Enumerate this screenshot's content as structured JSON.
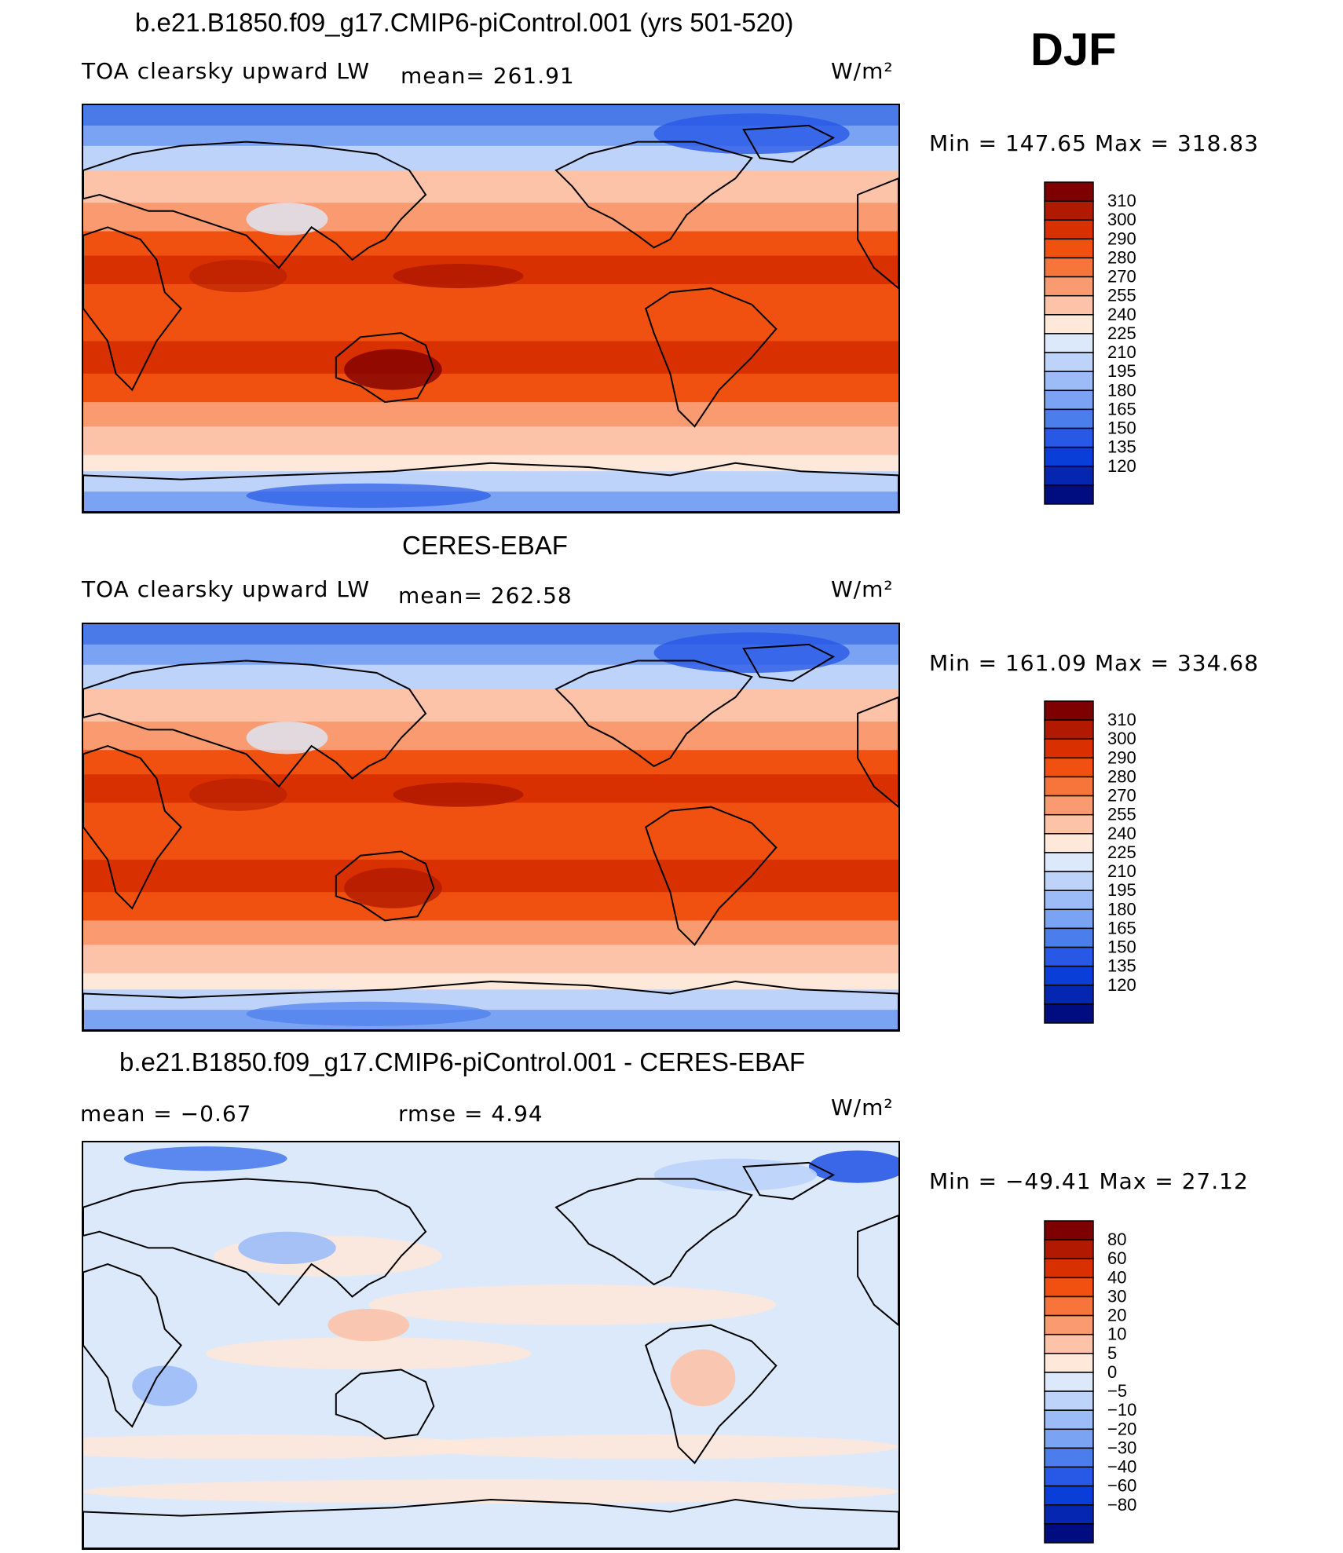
{
  "season": "DJF",
  "units": "W/m²",
  "panels": [
    {
      "title": "b.e21.B1850.f09_g17.CMIP6-piControl.001 (yrs 501-520)",
      "variable": "TOA clearsky upward LW",
      "stat_left": "",
      "stat_mid": "mean= 261.91",
      "min_max": "Min = 147.65 Max = 318.83",
      "kind": "field"
    },
    {
      "title": "CERES-EBAF",
      "variable": "TOA clearsky upward LW",
      "stat_left": "",
      "stat_mid": "mean= 262.58",
      "min_max": "Min = 161.09 Max = 334.68",
      "kind": "field"
    },
    {
      "title": "b.e21.B1850.f09_g17.CMIP6-piControl.001 - CERES-EBAF",
      "variable": "",
      "stat_left": "mean = −0.67",
      "stat_mid": "rmse = 4.94",
      "min_max": "Min = −49.41 Max = 27.12",
      "kind": "diff"
    }
  ],
  "chart_data": [
    {
      "type": "heatmap",
      "title": "b.e21.B1850.f09_g17.CMIP6-piControl.001 (yrs 501-520)",
      "variable": "TOA clearsky upward LW",
      "units": "W/m²",
      "mean": 261.91,
      "min": 147.65,
      "max": 318.83,
      "contour_levels": [
        120,
        135,
        150,
        165,
        180,
        195,
        210,
        225,
        240,
        255,
        270,
        280,
        290,
        300,
        310
      ]
    },
    {
      "type": "heatmap",
      "title": "CERES-EBAF",
      "variable": "TOA clearsky upward LW",
      "units": "W/m²",
      "mean": 262.58,
      "min": 161.09,
      "max": 334.68,
      "contour_levels": [
        120,
        135,
        150,
        165,
        180,
        195,
        210,
        225,
        240,
        255,
        270,
        280,
        290,
        300,
        310
      ]
    },
    {
      "type": "heatmap",
      "title": "b.e21.B1850.f09_g17.CMIP6-piControl.001 - CERES-EBAF",
      "units": "W/m²",
      "mean": -0.67,
      "rmse": 4.94,
      "min": -49.41,
      "max": 27.12,
      "contour_levels": [
        -80,
        -60,
        -40,
        -30,
        -20,
        -10,
        -5,
        0,
        5,
        10,
        20,
        30,
        40,
        60,
        80
      ]
    }
  ],
  "colorbars": {
    "field": {
      "labels": [
        "310",
        "300",
        "290",
        "280",
        "270",
        "255",
        "240",
        "225",
        "210",
        "195",
        "180",
        "165",
        "150",
        "135",
        "120"
      ],
      "colors": [
        "#7f0000",
        "#b21a00",
        "#d93000",
        "#f05010",
        "#f7743a",
        "#fa9a70",
        "#fcc3a8",
        "#fde8da",
        "#dce9fa",
        "#bdd3fa",
        "#9cbcf7",
        "#7aa3f3",
        "#4c7ded",
        "#2858e6",
        "#0a3ed9",
        "#0526b0",
        "#000d80"
      ]
    },
    "diff": {
      "labels": [
        "80",
        "60",
        "40",
        "30",
        "20",
        "10",
        "5",
        "0",
        "−5",
        "−10",
        "−20",
        "−30",
        "−40",
        "−60",
        "−80"
      ],
      "colors": [
        "#7f0000",
        "#b21a00",
        "#d93000",
        "#f05010",
        "#f7743a",
        "#fa9a70",
        "#fcc3a8",
        "#fde8da",
        "#dce9fa",
        "#bdd3fa",
        "#9cbcf7",
        "#7aa3f3",
        "#4c7ded",
        "#2858e6",
        "#0a3ed9",
        "#0526b0",
        "#000d80"
      ]
    }
  }
}
